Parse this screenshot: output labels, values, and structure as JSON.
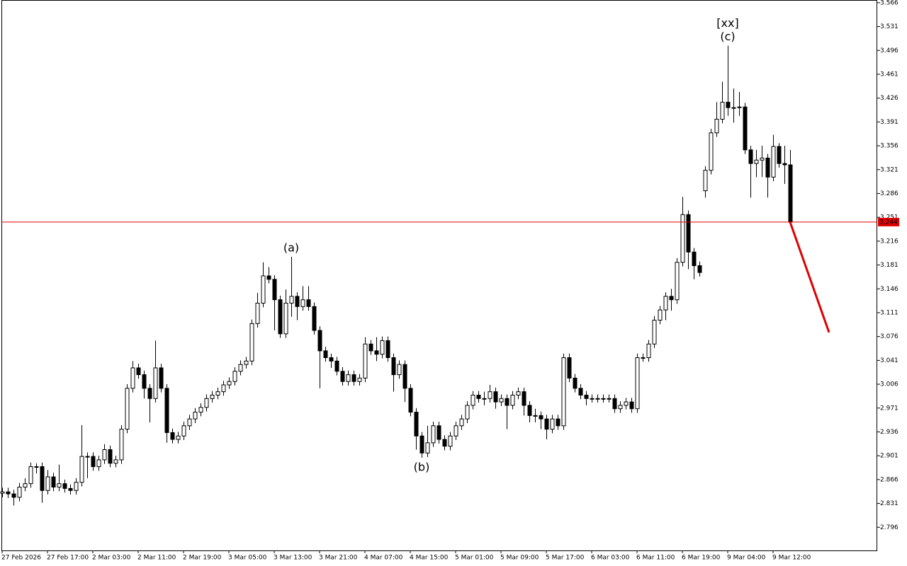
{
  "chart_data": {
    "type": "candlestick",
    "categories": [
      "27 Feb 2026",
      null,
      null,
      null,
      null,
      null,
      null,
      null,
      "27 Feb 17:00",
      null,
      null,
      null,
      null,
      null,
      null,
      null,
      "2 Mar 03:00",
      null,
      null,
      null,
      null,
      null,
      null,
      null,
      "2 Mar 11:00",
      null,
      null,
      null,
      null,
      null,
      null,
      null,
      "2 Mar 19:00",
      null,
      null,
      null,
      null,
      null,
      null,
      null,
      "3 Mar 05:00",
      null,
      null,
      null,
      null,
      null,
      null,
      null,
      "3 Mar 13:00",
      null,
      null,
      null,
      null,
      null,
      null,
      null,
      "3 Mar 21:00",
      null,
      null,
      null,
      null,
      null,
      null,
      null,
      "4 Mar 07:00",
      null,
      null,
      null,
      null,
      null,
      null,
      null,
      "4 Mar 15:00",
      null,
      null,
      null,
      null,
      null,
      null,
      null,
      "5 Mar 01:00",
      null,
      null,
      null,
      null,
      null,
      null,
      null,
      "5 Mar 09:00",
      null,
      null,
      null,
      null,
      null,
      null,
      null,
      "5 Mar 17:00",
      null,
      null,
      null,
      null,
      null,
      null,
      null,
      "6 Mar 03:00",
      null,
      null,
      null,
      null,
      null,
      null,
      null,
      "6 Mar 11:00",
      null,
      null,
      null,
      null,
      null,
      null,
      null,
      "6 Mar 19:00",
      null,
      null,
      null,
      null,
      null,
      null,
      null,
      "9 Mar 04:00",
      null,
      null,
      null,
      null,
      null,
      null,
      null,
      "9 Mar 12:00",
      null,
      null,
      null
    ],
    "open": [
      2.846,
      2.848,
      2.845,
      2.84,
      2.855,
      2.86,
      2.885,
      2.885,
      2.85,
      2.87,
      2.855,
      2.86,
      2.853,
      2.85,
      2.862,
      2.9,
      2.9,
      2.885,
      2.895,
      2.91,
      2.89,
      2.895,
      2.94,
      3.0,
      3.03,
      3.02,
      3.0,
      2.985,
      3.03,
      3.0,
      2.935,
      2.925,
      2.93,
      2.945,
      2.955,
      2.965,
      2.972,
      2.985,
      2.99,
      2.995,
      3.005,
      3.01,
      3.025,
      3.035,
      3.04,
      3.095,
      3.125,
      3.165,
      3.16,
      3.13,
      3.08,
      3.125,
      3.135,
      3.12,
      3.13,
      3.12,
      3.085,
      3.055,
      3.045,
      3.04,
      3.025,
      3.01,
      3.02,
      3.01,
      3.015,
      3.065,
      3.055,
      3.05,
      3.07,
      3.045,
      3.02,
      3.035,
      3.0,
      2.965,
      2.93,
      2.905,
      2.92,
      2.945,
      2.925,
      2.915,
      2.93,
      2.945,
      2.955,
      2.975,
      2.99,
      2.985,
      2.985,
      2.995,
      2.98,
      2.985,
      2.975,
      2.99,
      2.995,
      2.975,
      2.96,
      2.96,
      2.955,
      2.94,
      2.955,
      2.945,
      3.045,
      3.015,
      3.0,
      2.99,
      2.985,
      2.985,
      2.985,
      2.985,
      2.985,
      2.97,
      2.975,
      2.98,
      2.97,
      3.045,
      3.045,
      3.065,
      3.1,
      3.115,
      3.135,
      3.13,
      3.185,
      3.255,
      3.2,
      3.18,
      3.29,
      3.32,
      3.375,
      3.395,
      3.42,
      3.412,
      3.412,
      3.413,
      3.35,
      3.33,
      3.335,
      3.338,
      3.31,
      3.355,
      3.33,
      3.328
    ],
    "high": [
      2.854,
      2.854,
      2.851,
      2.861,
      2.868,
      2.891,
      2.89,
      2.891,
      2.88,
      2.876,
      2.888,
      2.866,
      2.859,
      2.868,
      2.946,
      2.906,
      2.906,
      2.901,
      2.918,
      2.916,
      2.901,
      2.946,
      3.006,
      3.04,
      3.036,
      3.026,
      3.006,
      3.07,
      3.036,
      3.006,
      2.941,
      2.936,
      2.951,
      2.961,
      2.971,
      2.978,
      2.991,
      2.996,
      3.001,
      3.011,
      3.016,
      3.031,
      3.041,
      3.046,
      3.101,
      3.14,
      3.185,
      3.178,
      3.166,
      3.136,
      3.145,
      3.193,
      3.141,
      3.15,
      3.15,
      3.126,
      3.091,
      3.061,
      3.051,
      3.046,
      3.031,
      3.026,
      3.026,
      3.021,
      3.075,
      3.071,
      3.075,
      3.076,
      3.076,
      3.051,
      3.041,
      3.041,
      3.006,
      2.971,
      2.936,
      2.945,
      2.951,
      2.951,
      2.931,
      2.936,
      2.951,
      2.961,
      2.981,
      2.996,
      2.996,
      2.995,
      3.005,
      3.001,
      2.991,
      2.991,
      2.996,
      3.001,
      3.001,
      2.981,
      2.97,
      2.966,
      2.961,
      2.961,
      2.961,
      3.051,
      3.051,
      3.021,
      3.006,
      2.996,
      2.991,
      2.991,
      2.991,
      2.991,
      2.991,
      2.981,
      2.986,
      2.986,
      3.051,
      3.051,
      3.071,
      3.106,
      3.121,
      3.141,
      3.146,
      3.191,
      3.281,
      3.261,
      3.206,
      3.186,
      3.326,
      3.381,
      3.42,
      3.45,
      3.503,
      3.44,
      3.435,
      3.419,
      3.356,
      3.35,
      3.356,
      3.344,
      3.372,
      3.36,
      3.356,
      3.35
    ],
    "low": [
      2.84,
      2.839,
      2.828,
      2.834,
      2.849,
      2.854,
      2.875,
      2.832,
      2.844,
      2.849,
      2.849,
      2.847,
      2.844,
      2.844,
      2.856,
      2.868,
      2.879,
      2.879,
      2.889,
      2.884,
      2.884,
      2.889,
      2.934,
      2.994,
      3.014,
      2.985,
      2.95,
      2.979,
      2.994,
      2.92,
      2.919,
      2.919,
      2.924,
      2.939,
      2.949,
      2.959,
      2.966,
      2.979,
      2.984,
      2.989,
      2.999,
      3.004,
      3.019,
      3.029,
      3.034,
      3.089,
      3.119,
      3.154,
      3.085,
      3.074,
      3.074,
      3.105,
      3.1,
      3.114,
      3.114,
      3.079,
      3.0,
      3.039,
      3.03,
      3.019,
      3.004,
      3.004,
      3.004,
      3.004,
      3.009,
      3.049,
      3.04,
      3.044,
      3.039,
      2.995,
      3.014,
      2.98,
      2.959,
      2.91,
      2.898,
      2.899,
      2.914,
      2.919,
      2.909,
      2.909,
      2.924,
      2.939,
      2.949,
      2.969,
      2.979,
      2.975,
      2.979,
      2.97,
      2.974,
      2.94,
      2.969,
      2.984,
      2.96,
      2.95,
      2.95,
      2.94,
      2.925,
      2.934,
      2.939,
      2.939,
      3.009,
      2.994,
      2.984,
      2.975,
      2.979,
      2.979,
      2.979,
      2.979,
      2.964,
      2.964,
      2.969,
      2.964,
      2.964,
      3.039,
      3.039,
      3.059,
      3.094,
      3.1,
      3.114,
      3.124,
      3.179,
      3.175,
      3.16,
      3.164,
      3.28,
      3.314,
      3.369,
      3.389,
      3.4,
      3.39,
      3.4,
      3.344,
      3.28,
      3.31,
      3.31,
      3.28,
      3.304,
      3.324,
      3.3,
      3.244
    ],
    "close": [
      2.848,
      2.845,
      2.84,
      2.855,
      2.86,
      2.885,
      2.885,
      2.85,
      2.87,
      2.855,
      2.86,
      2.853,
      2.85,
      2.862,
      2.9,
      2.9,
      2.885,
      2.895,
      2.91,
      2.89,
      2.895,
      2.94,
      3.0,
      3.03,
      3.02,
      3.0,
      2.985,
      3.03,
      3.0,
      2.935,
      2.925,
      2.93,
      2.945,
      2.955,
      2.965,
      2.972,
      2.985,
      2.99,
      2.995,
      3.005,
      3.01,
      3.025,
      3.035,
      3.04,
      3.095,
      3.125,
      3.165,
      3.16,
      3.13,
      3.08,
      3.125,
      3.135,
      3.12,
      3.13,
      3.12,
      3.085,
      3.055,
      3.045,
      3.04,
      3.025,
      3.01,
      3.02,
      3.01,
      3.015,
      3.065,
      3.055,
      3.05,
      3.07,
      3.045,
      3.02,
      3.035,
      3.0,
      2.965,
      2.93,
      2.905,
      2.92,
      2.945,
      2.925,
      2.915,
      2.93,
      2.945,
      2.955,
      2.975,
      2.99,
      2.985,
      2.985,
      2.995,
      2.98,
      2.985,
      2.975,
      2.99,
      2.995,
      2.975,
      2.96,
      2.96,
      2.955,
      2.94,
      2.955,
      2.945,
      3.045,
      3.015,
      3.0,
      2.99,
      2.985,
      2.985,
      2.985,
      2.985,
      2.985,
      2.97,
      2.975,
      2.98,
      2.97,
      3.045,
      3.045,
      3.065,
      3.1,
      3.115,
      3.135,
      3.13,
      3.185,
      3.255,
      3.2,
      3.18,
      3.17,
      3.32,
      3.375,
      3.395,
      3.42,
      3.412,
      3.412,
      3.413,
      3.35,
      3.33,
      3.335,
      3.338,
      3.31,
      3.355,
      3.33,
      3.328,
      3.244
    ],
    "up_color": "#ffffff",
    "down_color": "#000000",
    "current_price": 3.244,
    "current_price_color": "#e00000",
    "forecast": {
      "start": 3.244,
      "end": 3.082,
      "color": "#e00000"
    },
    "annotations": [
      {
        "text": "(a)",
        "color": "#1a2fe0"
      },
      {
        "text": "(b)",
        "color": "#1a2fe0"
      },
      {
        "text": "(c)",
        "color": "#1a2fe0"
      },
      {
        "text": "[xx]",
        "color": "#33bb33"
      }
    ],
    "ylim": [
      2.762,
      3.57
    ],
    "yticks": [
      2.796,
      2.831,
      2.866,
      2.901,
      2.936,
      2.971,
      3.006,
      3.041,
      3.076,
      3.111,
      3.146,
      3.181,
      3.216,
      3.251,
      3.286,
      3.321,
      3.356,
      3.391,
      3.426,
      3.461,
      3.496,
      3.531,
      3.566
    ]
  }
}
